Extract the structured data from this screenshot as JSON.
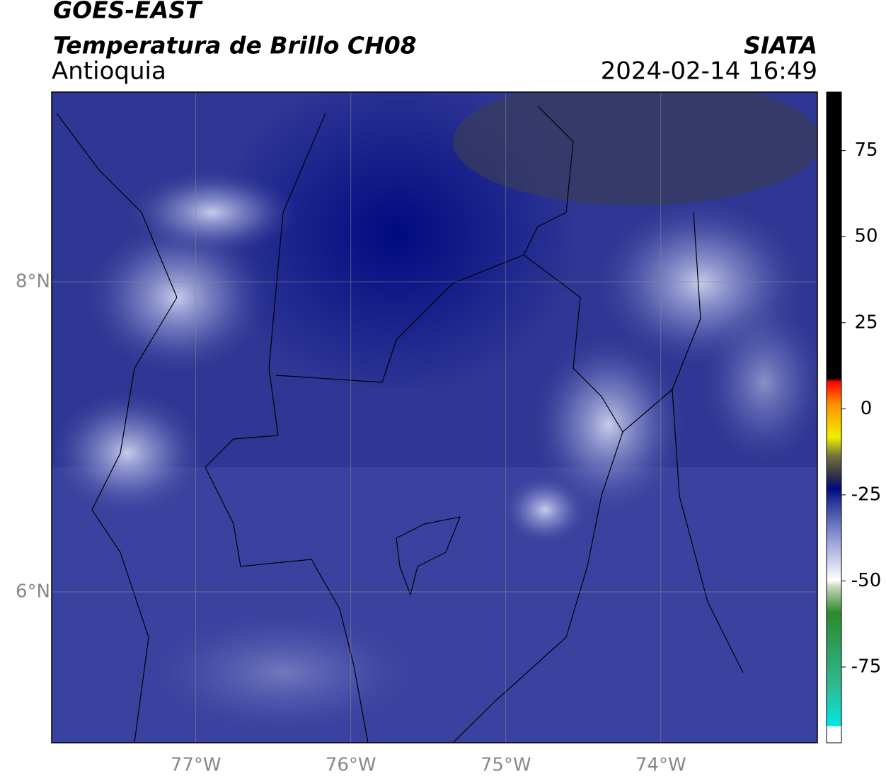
{
  "header": {
    "title": "GOES-EAST",
    "subtitle": "Temperatura de Brillo CH08",
    "region": "Antioquia",
    "agency": "SIATA",
    "datetime": "2024-02-14 16:49"
  },
  "map": {
    "lat_range": [
      5.027,
      9.224
    ],
    "lon_range": [
      -77.93,
      -72.99
    ],
    "lat_ticks": [
      {
        "value": 8,
        "label": "8°N"
      },
      {
        "value": 6,
        "label": "6°N"
      }
    ],
    "lon_ticks": [
      {
        "value": -77,
        "label": "77°W"
      },
      {
        "value": -76,
        "label": "76°W"
      },
      {
        "value": -75,
        "label": "75°W"
      },
      {
        "value": -74,
        "label": "74°W"
      }
    ]
  },
  "colorbar": {
    "range": [
      -97,
      92
    ],
    "ticks": [
      75,
      50,
      25,
      0,
      -25,
      -50,
      -75
    ]
  }
}
